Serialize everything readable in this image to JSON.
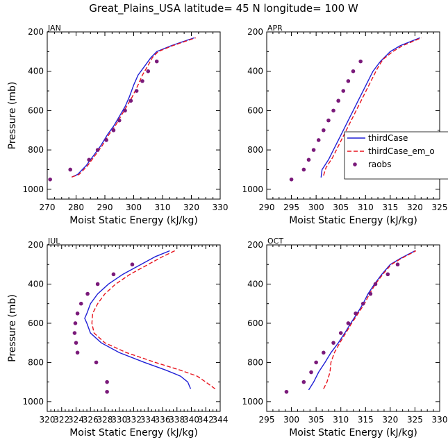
{
  "figure": {
    "title": "Great_Plains_USA   latitude= 45 N longitude= 100 W"
  },
  "colors": {
    "model": "#1f1fd6",
    "model_em": "#e8141e",
    "obs": "#7a1a7a"
  },
  "legend": {
    "placement": "right",
    "panel": 1,
    "entries": [
      {
        "label": "thirdCase",
        "style": "solid",
        "color": "#1f1fd6"
      },
      {
        "label": "thirdCase_em_o",
        "style": "dashed",
        "color": "#e8141e"
      },
      {
        "label": "raobs",
        "style": "marker",
        "color": "#7a1a7a"
      }
    ]
  },
  "chart_data": [
    {
      "type": "line",
      "title": "JAN",
      "xlabel": "Moist Static Energy (kJ/kg)",
      "ylabel": "Pressure (mb)",
      "xlim": [
        270,
        330
      ],
      "ylim": [
        1050,
        200
      ],
      "xticks": [
        270,
        280,
        290,
        300,
        310,
        320,
        330
      ],
      "yticks": [
        200,
        400,
        600,
        800,
        1000
      ],
      "grid": false,
      "series": [
        {
          "name": "thirdCase",
          "kind": "line",
          "color": "#1f1fd6",
          "points": [
            [
              278.5,
              938
            ],
            [
              280.5,
              925
            ],
            [
              283.5,
              880
            ],
            [
              286,
              830
            ],
            [
              288.5,
              780
            ],
            [
              291,
              720
            ],
            [
              293,
              680
            ],
            [
              295,
              630
            ],
            [
              297,
              580
            ],
            [
              298.5,
              530
            ],
            [
              300,
              470
            ],
            [
              301.5,
              420
            ],
            [
              304,
              370
            ],
            [
              306,
              330
            ],
            [
              308,
              300
            ],
            [
              313,
              270
            ],
            [
              321,
              230
            ]
          ]
        },
        {
          "name": "thirdCase_em_o",
          "kind": "line",
          "color": "#e8141e",
          "points": [
            [
              278.5,
              938
            ],
            [
              281,
              925
            ],
            [
              284,
              880
            ],
            [
              286.5,
              830
            ],
            [
              289,
              780
            ],
            [
              291.5,
              720
            ],
            [
              293.5,
              680
            ],
            [
              295.5,
              630
            ],
            [
              297.5,
              580
            ],
            [
              299.5,
              530
            ],
            [
              301.5,
              470
            ],
            [
              303,
              420
            ],
            [
              305,
              370
            ],
            [
              306.5,
              330
            ],
            [
              308.5,
              300
            ],
            [
              313.5,
              270
            ],
            [
              321.5,
              230
            ]
          ]
        },
        {
          "name": "raobs",
          "kind": "scatter",
          "color": "#7a1a7a",
          "points": [
            [
              271,
              950
            ],
            [
              278,
              900
            ],
            [
              284.5,
              850
            ],
            [
              287.5,
              800
            ],
            [
              290.5,
              750
            ],
            [
              293,
              700
            ],
            [
              295,
              650
            ],
            [
              297,
              600
            ],
            [
              299,
              550
            ],
            [
              301,
              500
            ],
            [
              303,
              450
            ],
            [
              305,
              400
            ],
            [
              308,
              350
            ]
          ]
        }
      ]
    },
    {
      "type": "line",
      "title": "APR",
      "xlabel": "Moist Static Energy (kJ/kg)",
      "ylabel": "",
      "xlim": [
        290,
        325
      ],
      "ylim": [
        1050,
        200
      ],
      "xticks": [
        290,
        295,
        300,
        305,
        310,
        315,
        320,
        325
      ],
      "yticks": [
        200,
        400,
        600,
        800,
        1000
      ],
      "grid": false,
      "series": [
        {
          "name": "thirdCase",
          "kind": "line",
          "color": "#1f1fd6",
          "points": [
            [
              301,
              940
            ],
            [
              301.2,
              900
            ],
            [
              302.5,
              850
            ],
            [
              303.5,
              800
            ],
            [
              304.5,
              750
            ],
            [
              305.5,
              700
            ],
            [
              306.5,
              650
            ],
            [
              307.5,
              600
            ],
            [
              308.5,
              550
            ],
            [
              309.5,
              500
            ],
            [
              310.5,
              450
            ],
            [
              311.5,
              400
            ],
            [
              313,
              350
            ],
            [
              315,
              300
            ],
            [
              317,
              270
            ],
            [
              321,
              230
            ]
          ]
        },
        {
          "name": "thirdCase_em_o",
          "kind": "line",
          "color": "#e8141e",
          "points": [
            [
              301.5,
              930
            ],
            [
              302,
              890
            ],
            [
              303.3,
              840
            ],
            [
              304.3,
              790
            ],
            [
              305.3,
              740
            ],
            [
              306.3,
              690
            ],
            [
              307.3,
              640
            ],
            [
              308.3,
              590
            ],
            [
              309.3,
              540
            ],
            [
              310.3,
              490
            ],
            [
              311.3,
              440
            ],
            [
              312.3,
              390
            ],
            [
              313.5,
              340
            ],
            [
              315.5,
              300
            ],
            [
              317.5,
              270
            ],
            [
              321.3,
              230
            ]
          ]
        },
        {
          "name": "raobs",
          "kind": "scatter",
          "color": "#7a1a7a",
          "points": [
            [
              295,
              950
            ],
            [
              297.5,
              900
            ],
            [
              298.5,
              850
            ],
            [
              299.5,
              800
            ],
            [
              300.5,
              750
            ],
            [
              301.5,
              700
            ],
            [
              302.5,
              650
            ],
            [
              303.5,
              600
            ],
            [
              304.5,
              550
            ],
            [
              305.5,
              500
            ],
            [
              306.5,
              450
            ],
            [
              307.5,
              400
            ],
            [
              309,
              350
            ]
          ]
        }
      ]
    },
    {
      "type": "line",
      "title": "JUL",
      "xlabel": "Moist Static Energy (kJ/kg)",
      "ylabel": "Pressure (mb)",
      "xlim": [
        320,
        344
      ],
      "ylim": [
        1050,
        200
      ],
      "xticks": [
        320,
        322,
        324,
        326,
        328,
        330,
        332,
        334,
        336,
        338,
        340,
        342,
        344
      ],
      "yticks": [
        200,
        400,
        600,
        800,
        1000
      ],
      "grid": false,
      "series": [
        {
          "name": "thirdCase",
          "kind": "line",
          "color": "#1f1fd6",
          "points": [
            [
              339.9,
              935
            ],
            [
              339.5,
              900
            ],
            [
              338.5,
              870
            ],
            [
              336.5,
              840
            ],
            [
              333.5,
              800
            ],
            [
              330,
              750
            ],
            [
              327.5,
              700
            ],
            [
              326,
              650
            ],
            [
              325.5,
              600
            ],
            [
              325.2,
              575
            ],
            [
              325.5,
              550
            ],
            [
              326,
              500
            ],
            [
              327,
              450
            ],
            [
              328.5,
              400
            ],
            [
              330.5,
              350
            ],
            [
              333,
              300
            ],
            [
              335,
              260
            ],
            [
              337,
              230
            ]
          ]
        },
        {
          "name": "thirdCase_em_o",
          "kind": "line",
          "color": "#e8141e",
          "points": [
            [
              343.3,
              935
            ],
            [
              342,
              900
            ],
            [
              340.8,
              870
            ],
            [
              338.5,
              840
            ],
            [
              335,
              800
            ],
            [
              331,
              750
            ],
            [
              328,
              700
            ],
            [
              326.5,
              650
            ],
            [
              326.2,
              600
            ],
            [
              326.3,
              550
            ],
            [
              327,
              500
            ],
            [
              328,
              450
            ],
            [
              329.5,
              400
            ],
            [
              331.5,
              350
            ],
            [
              334,
              300
            ],
            [
              336,
              260
            ],
            [
              337.7,
              230
            ]
          ]
        },
        {
          "name": "raobs",
          "kind": "scatter",
          "color": "#7a1a7a",
          "points": [
            [
              328.3,
              950
            ],
            [
              328.3,
              900
            ],
            [
              326.8,
              800
            ],
            [
              324.2,
              750
            ],
            [
              324,
              700
            ],
            [
              323.8,
              650
            ],
            [
              323.9,
              600
            ],
            [
              324.2,
              550
            ],
            [
              324.7,
              500
            ],
            [
              325.6,
              450
            ],
            [
              327,
              400
            ],
            [
              329.2,
              350
            ],
            [
              331.8,
              300
            ]
          ]
        }
      ]
    },
    {
      "type": "line",
      "title": "OCT",
      "xlabel": "Moist Static Energy (kJ/kg)",
      "ylabel": "",
      "xlim": [
        295,
        330
      ],
      "ylim": [
        1050,
        200
      ],
      "xticks": [
        295,
        300,
        305,
        310,
        315,
        320,
        325,
        330
      ],
      "yticks": [
        200,
        400,
        600,
        800,
        1000
      ],
      "grid": false,
      "series": [
        {
          "name": "thirdCase",
          "kind": "line",
          "color": "#1f1fd6",
          "points": [
            [
              303.5,
              940
            ],
            [
              304.5,
              900
            ],
            [
              305.5,
              850
            ],
            [
              306.8,
              800
            ],
            [
              308,
              750
            ],
            [
              309.5,
              700
            ],
            [
              310.8,
              650
            ],
            [
              312,
              600
            ],
            [
              313.3,
              550
            ],
            [
              314.5,
              500
            ],
            [
              315.5,
              450
            ],
            [
              316.8,
              400
            ],
            [
              318.3,
              350
            ],
            [
              320,
              300
            ],
            [
              322,
              270
            ],
            [
              325,
              230
            ]
          ]
        },
        {
          "name": "thirdCase_em_o",
          "kind": "line",
          "color": "#e8141e",
          "points": [
            [
              306.5,
              935
            ],
            [
              307.2,
              900
            ],
            [
              307.8,
              850
            ],
            [
              308,
              800
            ],
            [
              308.7,
              750
            ],
            [
              309.8,
              700
            ],
            [
              311,
              650
            ],
            [
              312.2,
              600
            ],
            [
              313.5,
              550
            ],
            [
              314.8,
              500
            ],
            [
              315.8,
              450
            ],
            [
              317,
              400
            ],
            [
              318.5,
              350
            ],
            [
              320.2,
              300
            ],
            [
              322.2,
              270
            ],
            [
              325.2,
              230
            ]
          ]
        },
        {
          "name": "raobs",
          "kind": "scatter",
          "color": "#7a1a7a",
          "points": [
            [
              299,
              950
            ],
            [
              302.5,
              900
            ],
            [
              304,
              850
            ],
            [
              305,
              800
            ],
            [
              306.5,
              750
            ],
            [
              308.5,
              700
            ],
            [
              310,
              650
            ],
            [
              311.5,
              600
            ],
            [
              313,
              550
            ],
            [
              314.5,
              500
            ],
            [
              316,
              450
            ],
            [
              317,
              400
            ],
            [
              319.5,
              350
            ],
            [
              321.5,
              300
            ]
          ]
        }
      ]
    }
  ]
}
